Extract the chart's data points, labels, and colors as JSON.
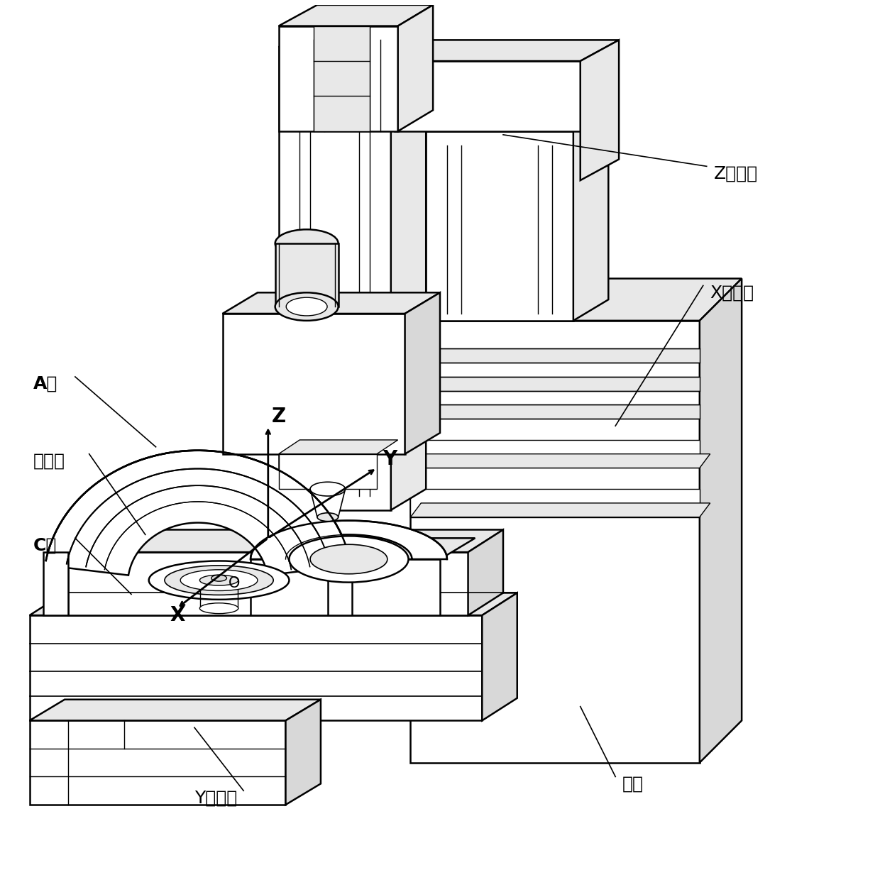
{
  "background_color": "#ffffff",
  "line_color": "#000000",
  "line_width": 1.8,
  "figure_width": 12.4,
  "figure_height": 12.26,
  "dpi": 100,
  "labels": {
    "Z_guide": "Z向导轨",
    "X_guide": "X向导轨",
    "Y_guide": "Y向导轨",
    "bed": "床身",
    "A_axis": "A轴",
    "C_axis": "C轴",
    "worktable": "工作台",
    "Z_axis": "Z",
    "X_axis": "X",
    "Y_axis": "Y",
    "O": "O"
  },
  "font_size_label": 18,
  "font_size_axis": 20,
  "font_size_O": 15
}
